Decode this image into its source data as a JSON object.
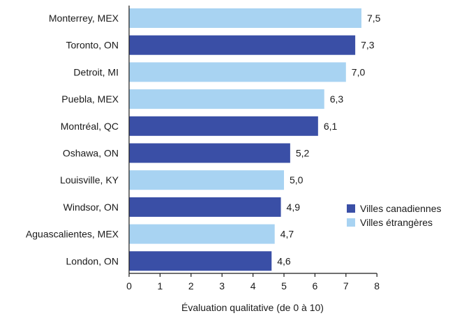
{
  "chart_data": {
    "type": "bar",
    "orientation": "horizontal",
    "categories": [
      "Monterrey, MEX",
      "Toronto, ON",
      "Detroit, MI",
      "Puebla, MEX",
      "Montréal, QC",
      "Oshawa, ON",
      "Louisville, KY",
      "Windsor, ON",
      "Aguascalientes, MEX",
      "London, ON"
    ],
    "values": [
      7.5,
      7.3,
      7.0,
      6.3,
      6.1,
      5.2,
      5.0,
      4.9,
      4.7,
      4.6
    ],
    "value_labels": [
      "7,5",
      "7,3",
      "7,0",
      "6,3",
      "6,1",
      "5,2",
      "5,0",
      "4,9",
      "4,7",
      "4,6"
    ],
    "groups": [
      "foreign",
      "canadian",
      "foreign",
      "foreign",
      "canadian",
      "canadian",
      "foreign",
      "canadian",
      "foreign",
      "canadian"
    ],
    "legend": [
      {
        "key": "canadian",
        "label": "Villes canadiennes",
        "color": "#3a4fa6"
      },
      {
        "key": "foreign",
        "label": "Villes étrangères",
        "color": "#a8d3f2"
      }
    ],
    "legend_position": "right",
    "xlabel": "Évaluation qualitative (de 0 à 10)",
    "ylabel": "",
    "title": "",
    "xlim": [
      0,
      8
    ],
    "xticks": [
      "0",
      "1",
      "2",
      "3",
      "4",
      "5",
      "6",
      "7",
      "8"
    ],
    "grid": false
  }
}
